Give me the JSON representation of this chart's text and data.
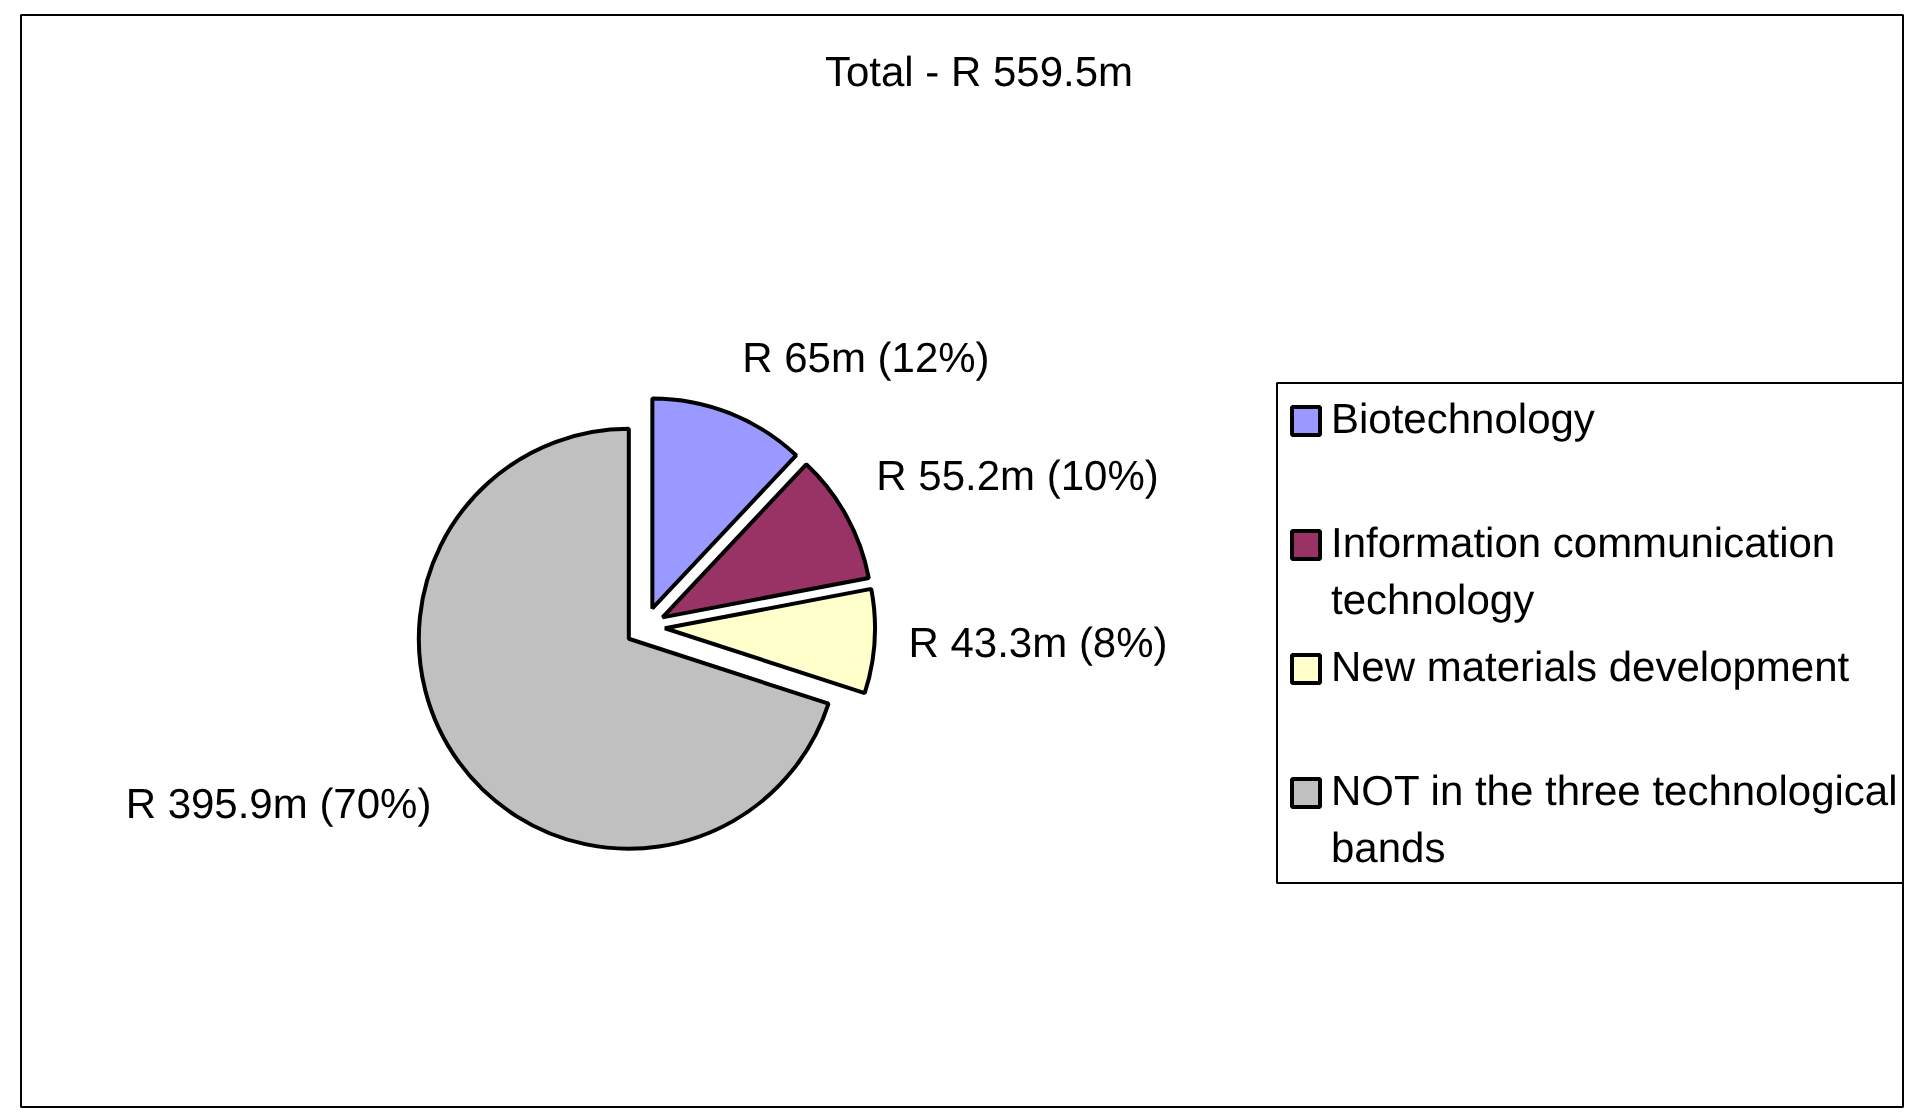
{
  "chart_data": {
    "type": "pie",
    "title": "Total - R 559.5m",
    "categories": [
      "Biotechnology",
      "Information communication technology",
      "New materials development",
      "NOT in the three technological bands"
    ],
    "values": [
      12,
      10,
      8,
      70
    ],
    "colors": [
      "#9999ff",
      "#993366",
      "#ffffcc",
      "#c0c0c0"
    ],
    "value_labels": [
      "R 65m (12%)",
      "R 55.2m (10%)",
      "R 43.3m (8%)",
      "R 395.9m (70%)"
    ],
    "legend": "right"
  }
}
